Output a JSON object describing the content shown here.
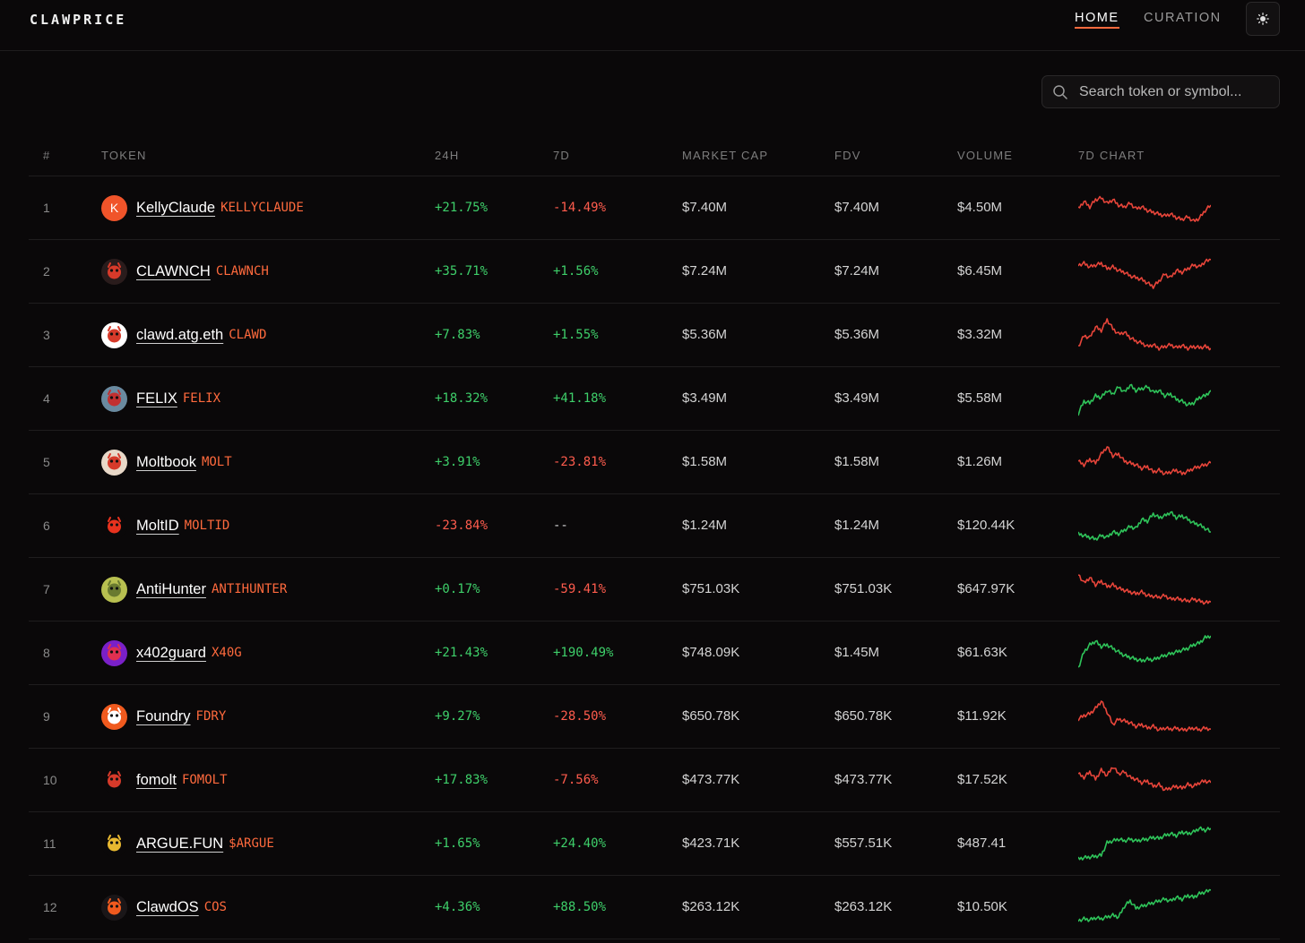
{
  "header": {
    "logo": "CLAWPRICE",
    "nav": [
      {
        "label": "HOME",
        "active": true
      },
      {
        "label": "CURATION",
        "active": false
      }
    ],
    "theme_icon": "sun-icon"
  },
  "search": {
    "placeholder": "Search token or symbol..."
  },
  "table": {
    "columns": [
      "#",
      "TOKEN",
      "24H",
      "7D",
      "MARKET CAP",
      "FDV",
      "VOLUME",
      "7D CHART"
    ],
    "rows": [
      {
        "rank": "1",
        "name": "KellyClaude",
        "symbol": "KELLYCLAUDE",
        "change24h": "+21.75%",
        "change7d": "-14.49%",
        "market_cap": "$7.40M",
        "fdv": "$7.40M",
        "volume": "$4.50M",
        "avatar": {
          "type": "letter",
          "letter": "K",
          "color": "#f0542a"
        },
        "trend": "red",
        "spark": [
          0.55,
          0.35,
          0.5,
          0.3,
          0.25,
          0.4,
          0.3,
          0.45,
          0.5,
          0.4,
          0.55,
          0.5,
          0.6,
          0.65,
          0.7,
          0.75,
          0.7,
          0.8,
          0.85,
          0.78,
          0.9,
          0.82,
          0.6,
          0.45
        ]
      },
      {
        "rank": "2",
        "name": "CLAWNCH",
        "symbol": "CLAWNCH",
        "change24h": "+35.71%",
        "change7d": "+1.56%",
        "market_cap": "$7.24M",
        "fdv": "$7.24M",
        "volume": "$6.45M",
        "avatar": {
          "type": "icon",
          "icon": "lobster-icon",
          "color": "#2a1c1c",
          "fg": "#d63a2a"
        },
        "trend": "red",
        "spark": [
          0.35,
          0.3,
          0.4,
          0.35,
          0.3,
          0.45,
          0.4,
          0.5,
          0.55,
          0.65,
          0.7,
          0.75,
          0.85,
          0.95,
          0.8,
          0.6,
          0.7,
          0.5,
          0.55,
          0.45,
          0.35,
          0.4,
          0.25,
          0.2
        ]
      },
      {
        "rank": "3",
        "name": "clawd.atg.eth",
        "symbol": "CLAWD",
        "change24h": "+7.83%",
        "change7d": "+1.55%",
        "market_cap": "$5.36M",
        "fdv": "$5.36M",
        "volume": "$3.32M",
        "avatar": {
          "type": "icon",
          "icon": "red-creature-icon",
          "color": "#ffffff",
          "fg": "#d63a2a"
        },
        "trend": "red",
        "spark": [
          0.85,
          0.55,
          0.6,
          0.3,
          0.4,
          0.1,
          0.35,
          0.5,
          0.45,
          0.6,
          0.7,
          0.75,
          0.85,
          0.8,
          0.9,
          0.85,
          0.8,
          0.88,
          0.82,
          0.9,
          0.85,
          0.88,
          0.85,
          0.9
        ]
      },
      {
        "rank": "4",
        "name": "FELIX",
        "symbol": "FELIX",
        "change24h": "+18.32%",
        "change7d": "+41.18%",
        "market_cap": "$3.49M",
        "fdv": "$3.49M",
        "volume": "$5.58M",
        "avatar": {
          "type": "icon",
          "icon": "felix-avatar-icon",
          "color": "#6a8aa0",
          "fg": "#c23030"
        },
        "trend": "green",
        "spark": [
          0.95,
          0.6,
          0.65,
          0.45,
          0.5,
          0.3,
          0.4,
          0.2,
          0.35,
          0.15,
          0.3,
          0.25,
          0.2,
          0.35,
          0.3,
          0.45,
          0.4,
          0.55,
          0.6,
          0.7,
          0.65,
          0.5,
          0.45,
          0.3
        ]
      },
      {
        "rank": "5",
        "name": "Moltbook",
        "symbol": "MOLT",
        "change24h": "+3.91%",
        "change7d": "-23.81%",
        "market_cap": "$1.58M",
        "fdv": "$1.58M",
        "volume": "$1.26M",
        "avatar": {
          "type": "icon",
          "icon": "moltbook-avatar-icon",
          "color": "#e8d8c8",
          "fg": "#d63a2a"
        },
        "trend": "red",
        "spark": [
          0.5,
          0.6,
          0.45,
          0.55,
          0.3,
          0.1,
          0.35,
          0.3,
          0.5,
          0.55,
          0.6,
          0.7,
          0.65,
          0.8,
          0.75,
          0.85,
          0.8,
          0.75,
          0.85,
          0.78,
          0.7,
          0.65,
          0.6,
          0.55
        ]
      },
      {
        "rank": "6",
        "name": "MoltID",
        "symbol": "MOLTID",
        "change24h": "-23.84%",
        "change7d": "--",
        "market_cap": "$1.24M",
        "fdv": "$1.24M",
        "volume": "$120.44K",
        "avatar": {
          "type": "icon",
          "icon": "crab-icon",
          "color": "#0a0809",
          "fg": "#e8321e"
        },
        "trend": "green",
        "spark": [
          0.75,
          0.8,
          0.85,
          0.9,
          0.8,
          0.85,
          0.7,
          0.75,
          0.65,
          0.55,
          0.6,
          0.35,
          0.4,
          0.2,
          0.3,
          0.25,
          0.15,
          0.3,
          0.25,
          0.35,
          0.45,
          0.5,
          0.6,
          0.7
        ]
      },
      {
        "rank": "7",
        "name": "AntiHunter",
        "symbol": "ANTIHUNTER",
        "change24h": "+0.17%",
        "change7d": "-59.41%",
        "market_cap": "$751.03K",
        "fdv": "$751.03K",
        "volume": "$647.97K",
        "avatar": {
          "type": "icon",
          "icon": "antihunter-avatar-icon",
          "color": "#b8c050",
          "fg": "#6a7a30"
        },
        "trend": "red",
        "spark": [
          0.1,
          0.35,
          0.2,
          0.4,
          0.3,
          0.45,
          0.4,
          0.5,
          0.55,
          0.6,
          0.65,
          0.6,
          0.7,
          0.72,
          0.75,
          0.7,
          0.8,
          0.78,
          0.82,
          0.85,
          0.8,
          0.85,
          0.9,
          0.88
        ]
      },
      {
        "rank": "8",
        "name": "x402guard",
        "symbol": "X40G",
        "change24h": "+21.43%",
        "change7d": "+190.49%",
        "market_cap": "$748.09K",
        "fdv": "$1.45M",
        "volume": "$61.63K",
        "avatar": {
          "type": "icon",
          "icon": "shield-avatar-icon",
          "color": "#7a20c8",
          "fg": "#e03050"
        },
        "trend": "green",
        "spark": [
          0.95,
          0.5,
          0.3,
          0.2,
          0.35,
          0.3,
          0.4,
          0.5,
          0.6,
          0.65,
          0.7,
          0.75,
          0.7,
          0.72,
          0.65,
          0.6,
          0.55,
          0.5,
          0.45,
          0.4,
          0.3,
          0.25,
          0.1,
          0.05
        ]
      },
      {
        "rank": "9",
        "name": "Foundry",
        "symbol": "FDRY",
        "change24h": "+9.27%",
        "change7d": "-28.50%",
        "market_cap": "$650.78K",
        "fdv": "$650.78K",
        "volume": "$11.92K",
        "avatar": {
          "type": "icon",
          "icon": "foundry-logo-icon",
          "color": "#f05a1e",
          "fg": "#ffffff"
        },
        "trend": "red",
        "spark": [
          0.6,
          0.5,
          0.45,
          0.3,
          0.1,
          0.4,
          0.75,
          0.6,
          0.65,
          0.7,
          0.8,
          0.75,
          0.85,
          0.8,
          0.9,
          0.85,
          0.88,
          0.85,
          0.9,
          0.88,
          0.85,
          0.9,
          0.85,
          0.88
        ]
      },
      {
        "rank": "10",
        "name": "fomolt",
        "symbol": "FOMOLT",
        "change24h": "+17.83%",
        "change7d": "-7.56%",
        "market_cap": "$473.77K",
        "fdv": "$473.77K",
        "volume": "$17.52K",
        "avatar": {
          "type": "icon",
          "icon": "fomolt-logo-icon",
          "color": "#0a0809",
          "fg": "#d63a2a"
        },
        "trend": "red",
        "spark": [
          0.35,
          0.45,
          0.3,
          0.5,
          0.25,
          0.4,
          0.15,
          0.35,
          0.3,
          0.45,
          0.5,
          0.6,
          0.55,
          0.7,
          0.65,
          0.8,
          0.75,
          0.7,
          0.75,
          0.65,
          0.7,
          0.6,
          0.55,
          0.6
        ]
      },
      {
        "rank": "11",
        "name": "ARGUE.FUN",
        "symbol": "$ARGUE",
        "change24h": "+1.65%",
        "change7d": "+24.40%",
        "market_cap": "$423.71K",
        "fdv": "$557.51K",
        "volume": "$487.41",
        "avatar": {
          "type": "icon",
          "icon": "argue-avatar-icon",
          "color": "#0a0809",
          "fg": "#e8b830"
        },
        "trend": "green",
        "spark": [
          0.95,
          0.92,
          0.9,
          0.88,
          0.85,
          0.5,
          0.45,
          0.4,
          0.45,
          0.4,
          0.45,
          0.42,
          0.4,
          0.35,
          0.38,
          0.3,
          0.25,
          0.3,
          0.2,
          0.25,
          0.2,
          0.1,
          0.15,
          0.1
        ]
      },
      {
        "rank": "12",
        "name": "ClawdOS",
        "symbol": "COS",
        "change24h": "+4.36%",
        "change7d": "+88.50%",
        "market_cap": "$263.12K",
        "fdv": "$263.12K",
        "volume": "$10.50K",
        "avatar": {
          "type": "icon",
          "icon": "clawdos-logo-icon",
          "color": "#1a1618",
          "fg": "#f05a1e"
        },
        "trend": "green",
        "spark": [
          0.9,
          0.85,
          0.88,
          0.82,
          0.85,
          0.8,
          0.75,
          0.8,
          0.5,
          0.35,
          0.55,
          0.5,
          0.45,
          0.4,
          0.35,
          0.3,
          0.35,
          0.25,
          0.3,
          0.2,
          0.25,
          0.15,
          0.1,
          0.05
        ]
      }
    ]
  },
  "colors": {
    "background": "#0a0809",
    "accent": "#ff6a3d",
    "positive": "#3ecf6a",
    "negative": "#ff5c4d",
    "spark_red": "#e8453a",
    "spark_green": "#2fc45a"
  }
}
